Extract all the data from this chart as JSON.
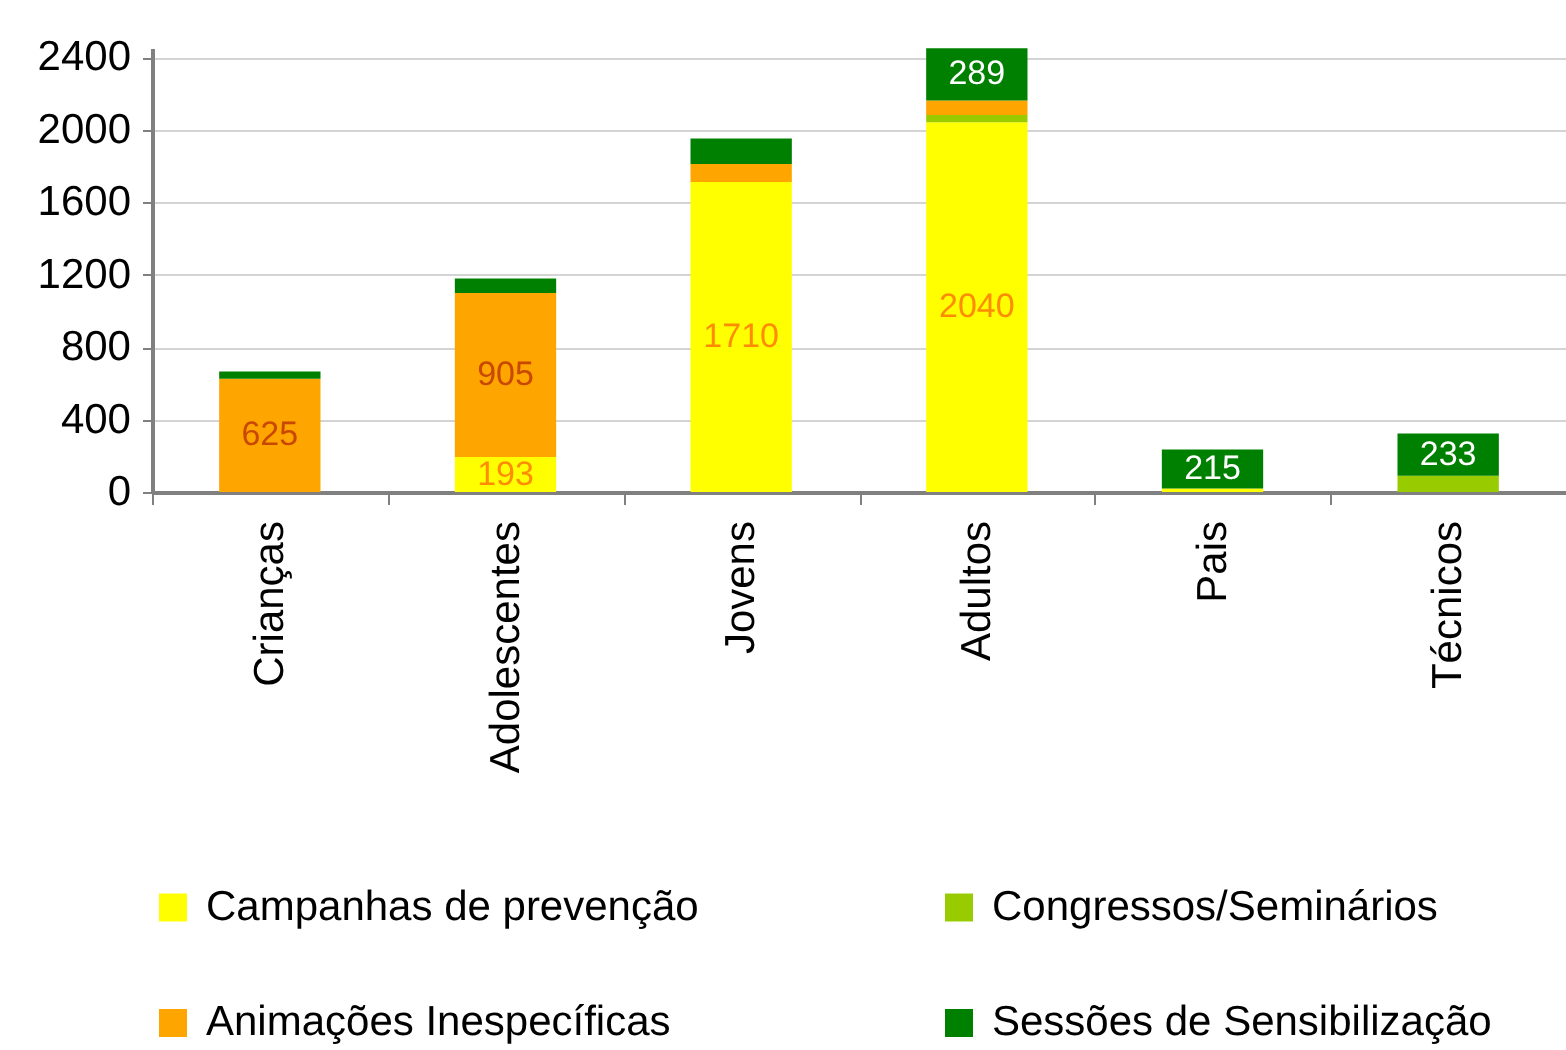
{
  "chart_data": {
    "type": "bar",
    "stacked": true,
    "categories": [
      "Crianças",
      "Adolescentes",
      "Jovens",
      "Adultos",
      "Pais",
      "Técnicos"
    ],
    "ylim": [
      0,
      2450
    ],
    "yticks": [
      0,
      400,
      800,
      1200,
      1600,
      2000,
      2400
    ],
    "grid": "y",
    "legend": "bottom",
    "series": [
      {
        "name": "Campanhas de prevenção",
        "color": "#ffff00",
        "values": [
          null,
          193,
          1710,
          2040,
          20,
          null
        ],
        "value_labels": [
          null,
          "193",
          "1710",
          "2040",
          null,
          null
        ]
      },
      {
        "name": "Congressos/Seminários",
        "color": "#99cc00",
        "values": [
          null,
          null,
          null,
          40,
          null,
          90
        ]
      },
      {
        "name": "Animações Inespecíficas",
        "color": "#ffa500",
        "values": [
          625,
          905,
          100,
          80,
          null,
          null
        ],
        "value_labels": [
          "625",
          "905",
          null,
          null,
          null,
          null
        ]
      },
      {
        "name": "Sessões de Sensibilização",
        "color": "#008000",
        "values": [
          40,
          80,
          140,
          289,
          215,
          233
        ],
        "value_labels": [
          null,
          null,
          null,
          "289",
          "215",
          "233"
        ]
      }
    ]
  }
}
